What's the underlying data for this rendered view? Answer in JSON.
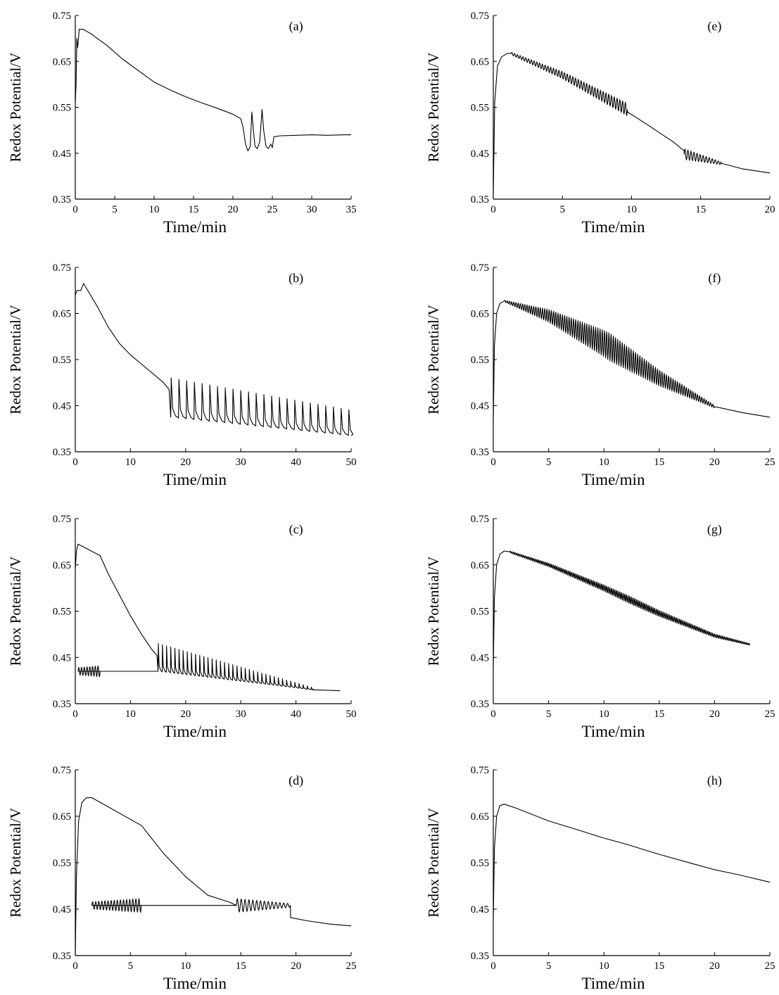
{
  "chart_data": [
    {
      "type": "line",
      "panel_label": "(a)",
      "xlabel": "Time/min",
      "ylabel": "Redox Potential/V",
      "xlim": [
        0,
        35
      ],
      "ylim": [
        0.35,
        0.75
      ],
      "x_ticks": [
        0,
        5,
        10,
        15,
        20,
        25,
        30,
        35
      ],
      "y_ticks": [
        0.35,
        0.45,
        0.55,
        0.65,
        0.75
      ],
      "y_tick_labels": [
        "0.35",
        "0.45",
        "0.55",
        "0.65",
        "0.75"
      ],
      "series": [
        {
          "x": [
            0,
            0.1,
            0.2,
            0.3,
            0.5,
            1.0,
            2,
            4,
            6,
            8,
            10,
            12,
            14,
            16,
            18,
            20,
            21.0,
            21.3,
            21.6,
            21.9,
            22.2,
            22.4,
            22.6,
            22.8,
            23.1,
            23.4,
            23.7,
            23.9,
            24.2,
            24.5,
            24.8,
            25.0,
            25.2,
            26,
            28,
            30,
            32,
            34,
            35
          ],
          "y": [
            0.56,
            0.6,
            0.7,
            0.68,
            0.72,
            0.72,
            0.71,
            0.685,
            0.655,
            0.63,
            0.605,
            0.588,
            0.573,
            0.56,
            0.548,
            0.535,
            0.525,
            0.505,
            0.47,
            0.455,
            0.465,
            0.54,
            0.5,
            0.465,
            0.46,
            0.475,
            0.545,
            0.5,
            0.465,
            0.46,
            0.47,
            0.462,
            0.486,
            0.488,
            0.489,
            0.49,
            0.489,
            0.49,
            0.49
          ],
          "oscillation": []
        }
      ]
    },
    {
      "type": "line",
      "panel_label": "(b)",
      "xlabel": "Time/min",
      "ylabel": "Redox Potential/V",
      "xlim": [
        0,
        50
      ],
      "ylim": [
        0.35,
        0.75
      ],
      "x_ticks": [
        0,
        10,
        20,
        30,
        40,
        50
      ],
      "y_ticks": [
        0.35,
        0.45,
        0.55,
        0.65,
        0.75
      ],
      "y_tick_labels": [
        "0.35",
        "0.45",
        "0.55",
        "0.65",
        "0.75"
      ],
      "series": [
        {
          "x": [
            0,
            0.3,
            1,
            1.5,
            2,
            4,
            6,
            8,
            10,
            12,
            14,
            16,
            17,
            17.3
          ],
          "y": [
            0.69,
            0.7,
            0.7,
            0.715,
            0.705,
            0.665,
            0.62,
            0.585,
            0.56,
            0.54,
            0.52,
            0.5,
            0.485,
            0.425
          ],
          "oscillation": [
            {
              "type": "spikes",
              "x_start": 17.3,
              "x_end": 50,
              "period": 1.4,
              "base_start": 0.425,
              "base_end": 0.385,
              "peak_start": 0.51,
              "peak_end": 0.44
            }
          ]
        }
      ]
    },
    {
      "type": "line",
      "panel_label": "(c)",
      "xlabel": "Time/min",
      "ylabel": "Redox Potential/V",
      "xlim": [
        0,
        50
      ],
      "ylim": [
        0.35,
        0.75
      ],
      "x_ticks": [
        0,
        10,
        20,
        30,
        40,
        50
      ],
      "y_ticks": [
        0.35,
        0.45,
        0.55,
        0.65,
        0.75
      ],
      "y_tick_labels": [
        "0.35",
        "0.45",
        "0.55",
        "0.65",
        "0.75"
      ],
      "series": [
        {
          "x": [
            0,
            0.2,
            0.5,
            4.5,
            6,
            8,
            10,
            12,
            14,
            14.8,
            15.0
          ],
          "y": [
            0.64,
            0.68,
            0.695,
            0.67,
            0.63,
            0.585,
            0.54,
            0.5,
            0.465,
            0.455,
            0.42
          ],
          "oscillation": [
            {
              "type": "sine",
              "x_start": 0.5,
              "x_end": 4.5,
              "period": 0.5,
              "amp_start": 0.008,
              "amp_end": 0.012
            },
            {
              "type": "spikes",
              "x_start": 15.0,
              "x_end": 43,
              "period": 0.75,
              "base_start": 0.42,
              "base_end": 0.38,
              "peak_start": 0.48,
              "peak_end": 0.385
            },
            {
              "type": "line",
              "points": [
                [
                  43,
                  0.38
                ],
                [
                  48,
                  0.378
                ]
              ]
            }
          ]
        }
      ]
    },
    {
      "type": "line",
      "panel_label": "(d)",
      "xlabel": "Time/min",
      "ylabel": "Redox Potential/V",
      "xlim": [
        0,
        25
      ],
      "ylim": [
        0.35,
        0.75
      ],
      "x_ticks": [
        0,
        5,
        10,
        15,
        20,
        25
      ],
      "y_ticks": [
        0.35,
        0.45,
        0.55,
        0.65,
        0.75
      ],
      "y_tick_labels": [
        "0.35",
        "0.45",
        "0.55",
        "0.65",
        "0.75"
      ],
      "series": [
        {
          "x": [
            0,
            0.1,
            0.3,
            0.6,
            1.0,
            1.5,
            6,
            8,
            10,
            12,
            14,
            14.6
          ],
          "y": [
            0.35,
            0.52,
            0.64,
            0.68,
            0.69,
            0.69,
            0.63,
            0.57,
            0.52,
            0.48,
            0.465,
            0.458
          ],
          "oscillation": [
            {
              "type": "sine",
              "x_start": 1.5,
              "x_end": 6.0,
              "period": 0.28,
              "amp_start": 0.008,
              "amp_end": 0.015
            },
            {
              "type": "sine",
              "x_start": 14.6,
              "x_end": 19.5,
              "period": 0.35,
              "amp_start": 0.015,
              "amp_end": 0.004
            },
            {
              "type": "line",
              "points": [
                [
                  19.5,
                  0.432
                ],
                [
                  21,
                  0.425
                ],
                [
                  23,
                  0.418
                ],
                [
                  25,
                  0.414
                ]
              ]
            }
          ]
        }
      ]
    },
    {
      "type": "line",
      "panel_label": "(e)",
      "xlabel": "Time/min",
      "ylabel": "Redox Potential/V",
      "xlim": [
        0,
        20
      ],
      "ylim": [
        0.35,
        0.75
      ],
      "x_ticks": [
        0,
        5,
        10,
        15,
        20
      ],
      "y_ticks": [
        0.35,
        0.45,
        0.55,
        0.65,
        0.75
      ],
      "y_tick_labels": [
        "0.35",
        "0.45",
        "0.55",
        "0.65",
        "0.75"
      ],
      "series": [
        {
          "x": [
            0,
            0.1,
            0.3,
            0.6,
            1.0,
            1.3
          ],
          "y": [
            0.36,
            0.56,
            0.64,
            0.66,
            0.667,
            0.668
          ],
          "oscillation": [
            {
              "type": "sine",
              "x_start": 1.3,
              "x_end": 9.7,
              "period": 0.2,
              "amp_start": 0.003,
              "amp_end": 0.014,
              "center_points": [
                [
                  1.3,
                  0.667
                ],
                [
                  5,
                  0.62
                ],
                [
                  9.7,
                  0.545
                ]
              ]
            },
            {
              "type": "line",
              "points": [
                [
                  9.7,
                  0.54
                ],
                [
                  11,
                  0.515
                ],
                [
                  12,
                  0.495
                ],
                [
                  13,
                  0.475
                ],
                [
                  13.8,
                  0.455
                ]
              ]
            },
            {
              "type": "sine",
              "x_start": 13.8,
              "x_end": 16.5,
              "period": 0.22,
              "amp_start": 0.012,
              "amp_end": 0.003,
              "center_points": [
                [
                  13.8,
                  0.448
                ],
                [
                  16.5,
                  0.428
                ]
              ]
            },
            {
              "type": "line",
              "points": [
                [
                  16.5,
                  0.428
                ],
                [
                  18,
                  0.416
                ],
                [
                  20,
                  0.407
                ]
              ]
            }
          ]
        }
      ]
    },
    {
      "type": "line",
      "panel_label": "(f)",
      "xlabel": "Time/min",
      "ylabel": "Redox Potential/V",
      "xlim": [
        0,
        25
      ],
      "ylim": [
        0.35,
        0.75
      ],
      "x_ticks": [
        0,
        5,
        10,
        15,
        20,
        25
      ],
      "y_ticks": [
        0.35,
        0.45,
        0.55,
        0.65,
        0.75
      ],
      "y_tick_labels": [
        "0.35",
        "0.45",
        "0.55",
        "0.65",
        "0.75"
      ],
      "series": [
        {
          "x": [
            0,
            0.1,
            0.3,
            0.6,
            1.0
          ],
          "y": [
            0.42,
            0.58,
            0.65,
            0.672,
            0.677
          ],
          "oscillation": [
            {
              "type": "sine",
              "x_start": 1.0,
              "x_end": 20,
              "period": 0.2,
              "amp_start": 0.002,
              "amp_end": 0.003,
              "amp_mid": 0.03,
              "center_points": [
                [
                  1,
                  0.677
                ],
                [
                  5,
                  0.645
                ],
                [
                  10,
                  0.585
                ],
                [
                  15,
                  0.51
                ],
                [
                  20,
                  0.448
                ]
              ]
            },
            {
              "type": "line",
              "points": [
                [
                  20,
                  0.448
                ],
                [
                  22.5,
                  0.435
                ],
                [
                  25,
                  0.425
                ]
              ]
            }
          ]
        }
      ]
    },
    {
      "type": "line",
      "panel_label": "(g)",
      "xlabel": "Time/min",
      "ylabel": "Redox Potential/V",
      "xlim": [
        0,
        25
      ],
      "ylim": [
        0.35,
        0.75
      ],
      "x_ticks": [
        0,
        5,
        10,
        15,
        20,
        25
      ],
      "y_ticks": [
        0.35,
        0.45,
        0.55,
        0.65,
        0.75
      ],
      "y_tick_labels": [
        "0.35",
        "0.45",
        "0.55",
        "0.65",
        "0.75"
      ],
      "series": [
        {
          "x": [
            0,
            0.1,
            0.3,
            0.6,
            1.0,
            1.5
          ],
          "y": [
            0.43,
            0.58,
            0.65,
            0.673,
            0.68,
            0.678
          ],
          "oscillation": [
            {
              "type": "sine",
              "x_start": 1.5,
              "x_end": 23.2,
              "period": 0.15,
              "amp_start": 0.002,
              "amp_end": 0.002,
              "amp_mid": 0.008,
              "center_points": [
                [
                  1.5,
                  0.678
                ],
                [
                  5,
                  0.65
                ],
                [
                  10,
                  0.6
                ],
                [
                  15,
                  0.545
                ],
                [
                  20,
                  0.497
                ],
                [
                  23.2,
                  0.478
                ]
              ]
            }
          ]
        }
      ]
    },
    {
      "type": "line",
      "panel_label": "(h)",
      "xlabel": "Time/min",
      "ylabel": "Redox Potential/V",
      "xlim": [
        0,
        25
      ],
      "ylim": [
        0.35,
        0.75
      ],
      "x_ticks": [
        0,
        5,
        10,
        15,
        20,
        25
      ],
      "y_ticks": [
        0.35,
        0.45,
        0.55,
        0.65,
        0.75
      ],
      "y_tick_labels": [
        "0.35",
        "0.45",
        "0.55",
        "0.65",
        "0.75"
      ],
      "series": [
        {
          "x": [
            0,
            0.1,
            0.3,
            0.6,
            1.0,
            2,
            5,
            8,
            10,
            12,
            15,
            18,
            20,
            22,
            25
          ],
          "y": [
            0.43,
            0.58,
            0.65,
            0.673,
            0.676,
            0.668,
            0.64,
            0.618,
            0.603,
            0.59,
            0.568,
            0.548,
            0.535,
            0.525,
            0.508
          ],
          "oscillation": []
        }
      ]
    }
  ]
}
